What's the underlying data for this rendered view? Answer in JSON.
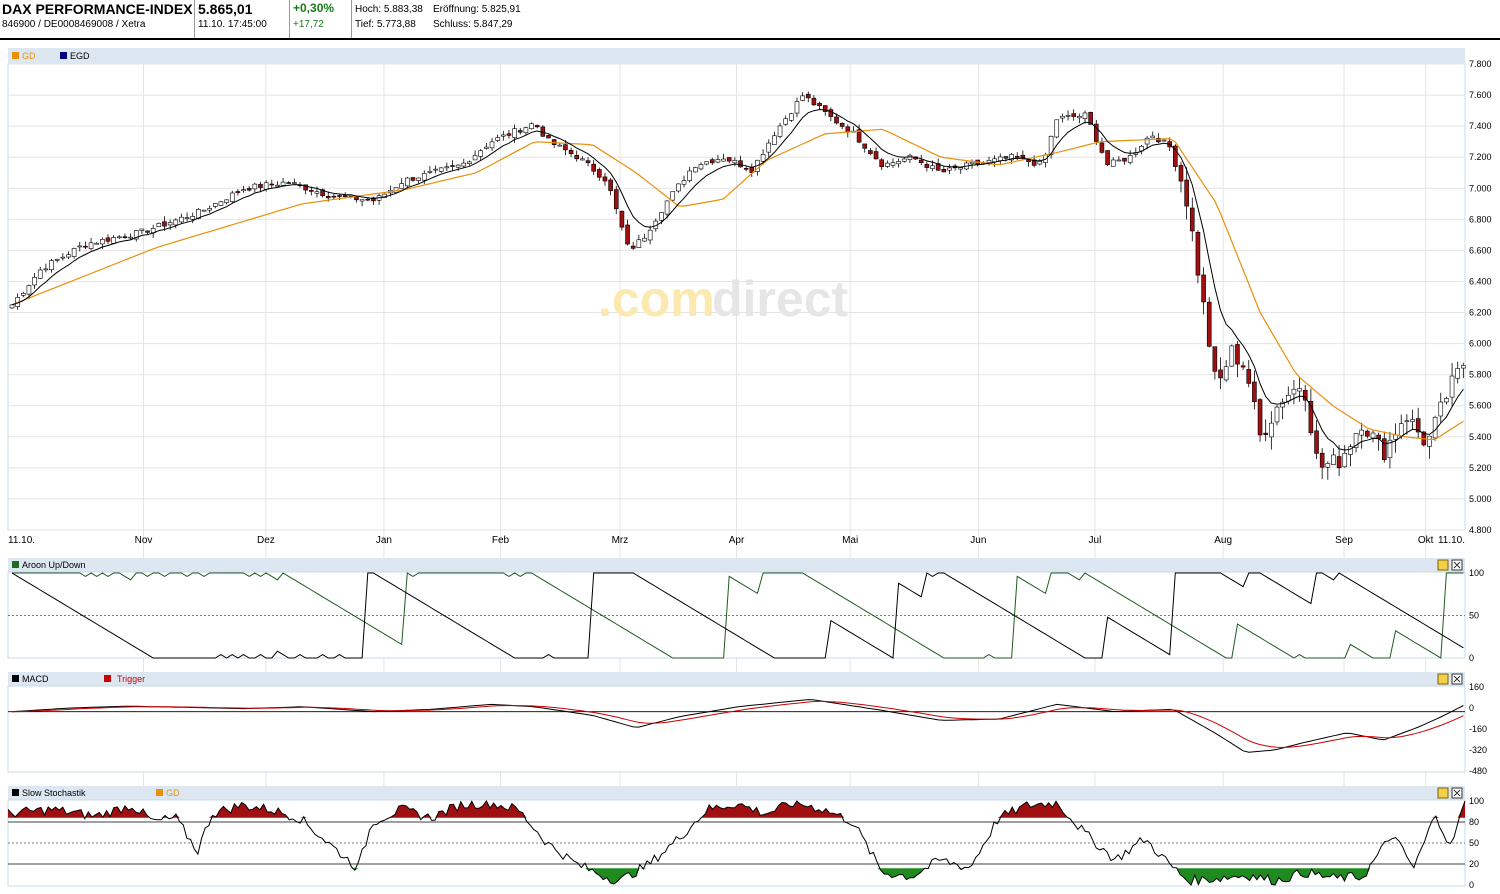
{
  "header": {
    "name": "DAX PERFORMANCE-INDEX",
    "ids": "846900 / DE0008469008 / Xetra",
    "price": "5.865,01",
    "datetime": "11.10. 17:45:00",
    "change_pct": "+0,30%",
    "change_abs": "+17,72",
    "high_label": "Hoch: 5.883,38",
    "open_label": "Eröffnung: 5.825,91",
    "low_label": "Tief: 5.773,88",
    "close_label": "Schluss: 5.847,29"
  },
  "watermark": {
    "part1": ".com",
    "part2": "direct"
  },
  "colors": {
    "up_body": "#ffffff",
    "down_body": "#a01010",
    "gd": "#e8900a",
    "egd": "#000080",
    "frame": "#c8d8e8",
    "green_fill": "#1f8a1f",
    "red_fill": "#a01010"
  },
  "chart_data": [
    {
      "type": "candlestick",
      "legend": [
        "GD",
        "EGD"
      ],
      "y_ticks": [
        "7.800",
        "7.600",
        "7.400",
        "7.200",
        "7.000",
        "6.800",
        "6.600",
        "6.400",
        "6.200",
        "6.000",
        "5.800",
        "5.600",
        "5.400",
        "5.200",
        "5.000",
        "4.800"
      ],
      "ylim": [
        4800,
        7800
      ],
      "x_labels": [
        "11.10.",
        "Nov",
        "Dez",
        "Jan",
        "Feb",
        "Mrz",
        "Apr",
        "Mai",
        "Jun",
        "Jul",
        "Aug",
        "Sep",
        "Okt",
        "11.10."
      ],
      "x_label_positions": [
        0,
        0.093,
        0.177,
        0.258,
        0.338,
        0.42,
        0.5,
        0.578,
        0.666,
        0.746,
        0.834,
        0.917,
        0.973,
        1.0
      ],
      "close_anchors": [
        [
          0,
          6250
        ],
        [
          0.02,
          6480
        ],
        [
          0.05,
          6640
        ],
        [
          0.09,
          6720
        ],
        [
          0.13,
          6850
        ],
        [
          0.16,
          7000
        ],
        [
          0.19,
          7040
        ],
        [
          0.22,
          6950
        ],
        [
          0.25,
          6920
        ],
        [
          0.27,
          7050
        ],
        [
          0.29,
          7100
        ],
        [
          0.31,
          7150
        ],
        [
          0.33,
          7300
        ],
        [
          0.36,
          7420
        ],
        [
          0.37,
          7300
        ],
        [
          0.39,
          7200
        ],
        [
          0.41,
          7050
        ],
        [
          0.425,
          6600
        ],
        [
          0.435,
          6680
        ],
        [
          0.45,
          6900
        ],
        [
          0.47,
          7150
        ],
        [
          0.49,
          7200
        ],
        [
          0.51,
          7120
        ],
        [
          0.525,
          7350
        ],
        [
          0.545,
          7600
        ],
        [
          0.565,
          7450
        ],
        [
          0.58,
          7350
        ],
        [
          0.6,
          7150
        ],
        [
          0.62,
          7200
        ],
        [
          0.64,
          7100
        ],
        [
          0.66,
          7150
        ],
        [
          0.69,
          7200
        ],
        [
          0.71,
          7150
        ],
        [
          0.72,
          7450
        ],
        [
          0.74,
          7470
        ],
        [
          0.755,
          7150
        ],
        [
          0.77,
          7200
        ],
        [
          0.785,
          7350
        ],
        [
          0.8,
          7250
        ],
        [
          0.81,
          6900
        ],
        [
          0.82,
          6300
        ],
        [
          0.83,
          5700
        ],
        [
          0.84,
          5950
        ],
        [
          0.85,
          5850
        ],
        [
          0.86,
          5400
        ],
        [
          0.875,
          5650
        ],
        [
          0.89,
          5750
        ],
        [
          0.9,
          5200
        ],
        [
          0.915,
          5250
        ],
        [
          0.93,
          5500
        ],
        [
          0.945,
          5300
        ],
        [
          0.96,
          5550
        ],
        [
          0.975,
          5350
        ],
        [
          0.99,
          5700
        ],
        [
          1.0,
          5870
        ]
      ],
      "sma_anchors": [
        [
          0,
          6250
        ],
        [
          0.1,
          6620
        ],
        [
          0.2,
          6900
        ],
        [
          0.27,
          6990
        ],
        [
          0.32,
          7100
        ],
        [
          0.36,
          7300
        ],
        [
          0.4,
          7280
        ],
        [
          0.43,
          7100
        ],
        [
          0.46,
          6880
        ],
        [
          0.49,
          6930
        ],
        [
          0.52,
          7180
        ],
        [
          0.56,
          7350
        ],
        [
          0.6,
          7380
        ],
        [
          0.64,
          7200
        ],
        [
          0.68,
          7150
        ],
        [
          0.72,
          7230
        ],
        [
          0.75,
          7300
        ],
        [
          0.8,
          7320
        ],
        [
          0.83,
          6900
        ],
        [
          0.86,
          6200
        ],
        [
          0.885,
          5800
        ],
        [
          0.91,
          5600
        ],
        [
          0.935,
          5450
        ],
        [
          0.96,
          5400
        ],
        [
          0.98,
          5380
        ],
        [
          1.0,
          5500
        ]
      ]
    },
    {
      "type": "line",
      "title": "Aroon Up/Down",
      "y_ticks": [
        "100",
        "50",
        "0"
      ],
      "ylim": [
        0,
        100
      ]
    },
    {
      "type": "line",
      "title": "MACD",
      "legend": [
        "MACD",
        "Trigger"
      ],
      "y_ticks": [
        "160",
        "0",
        "-160",
        "-320",
        "-480"
      ],
      "ylim": [
        -480,
        200
      ],
      "macd_anchors": [
        [
          0,
          0
        ],
        [
          0.04,
          30
        ],
        [
          0.08,
          45
        ],
        [
          0.16,
          25
        ],
        [
          0.2,
          40
        ],
        [
          0.25,
          0
        ],
        [
          0.29,
          20
        ],
        [
          0.33,
          60
        ],
        [
          0.36,
          40
        ],
        [
          0.4,
          -30
        ],
        [
          0.43,
          -130
        ],
        [
          0.46,
          -40
        ],
        [
          0.5,
          40
        ],
        [
          0.55,
          100
        ],
        [
          0.6,
          10
        ],
        [
          0.64,
          -70
        ],
        [
          0.68,
          -60
        ],
        [
          0.72,
          60
        ],
        [
          0.76,
          0
        ],
        [
          0.8,
          20
        ],
        [
          0.83,
          -180
        ],
        [
          0.85,
          -330
        ],
        [
          0.87,
          -310
        ],
        [
          0.89,
          -250
        ],
        [
          0.92,
          -170
        ],
        [
          0.945,
          -230
        ],
        [
          0.97,
          -120
        ],
        [
          0.985,
          -40
        ],
        [
          1.0,
          50
        ]
      ]
    },
    {
      "type": "line",
      "title": "Slow Stochastik",
      "legend": [
        "Slow Stochastik",
        "GD"
      ],
      "y_ticks": [
        "100",
        "80",
        "50",
        "20",
        "0"
      ],
      "ylim": [
        0,
        100
      ],
      "anchors": [
        [
          0,
          85
        ],
        [
          0.03,
          90
        ],
        [
          0.06,
          82
        ],
        [
          0.085,
          95
        ],
        [
          0.1,
          75
        ],
        [
          0.115,
          80
        ],
        [
          0.13,
          40
        ],
        [
          0.14,
          85
        ],
        [
          0.16,
          95
        ],
        [
          0.18,
          90
        ],
        [
          0.2,
          80
        ],
        [
          0.22,
          50
        ],
        [
          0.24,
          20
        ],
        [
          0.25,
          75
        ],
        [
          0.27,
          90
        ],
        [
          0.29,
          80
        ],
        [
          0.31,
          95
        ],
        [
          0.33,
          98
        ],
        [
          0.35,
          90
        ],
        [
          0.37,
          50
        ],
        [
          0.39,
          25
        ],
        [
          0.41,
          10
        ],
        [
          0.42,
          5
        ],
        [
          0.44,
          25
        ],
        [
          0.46,
          55
        ],
        [
          0.48,
          90
        ],
        [
          0.5,
          97
        ],
        [
          0.52,
          85
        ],
        [
          0.54,
          98
        ],
        [
          0.56,
          90
        ],
        [
          0.58,
          75
        ],
        [
          0.6,
          15
        ],
        [
          0.62,
          10
        ],
        [
          0.64,
          30
        ],
        [
          0.66,
          20
        ],
        [
          0.68,
          80
        ],
        [
          0.7,
          95
        ],
        [
          0.72,
          98
        ],
        [
          0.74,
          60
        ],
        [
          0.76,
          30
        ],
        [
          0.78,
          55
        ],
        [
          0.8,
          20
        ],
        [
          0.81,
          5
        ],
        [
          0.83,
          8
        ],
        [
          0.85,
          12
        ],
        [
          0.87,
          5
        ],
        [
          0.89,
          15
        ],
        [
          0.91,
          8
        ],
        [
          0.93,
          10
        ],
        [
          0.95,
          60
        ],
        [
          0.965,
          20
        ],
        [
          0.98,
          85
        ],
        [
          0.99,
          45
        ],
        [
          1.0,
          98
        ]
      ]
    }
  ]
}
